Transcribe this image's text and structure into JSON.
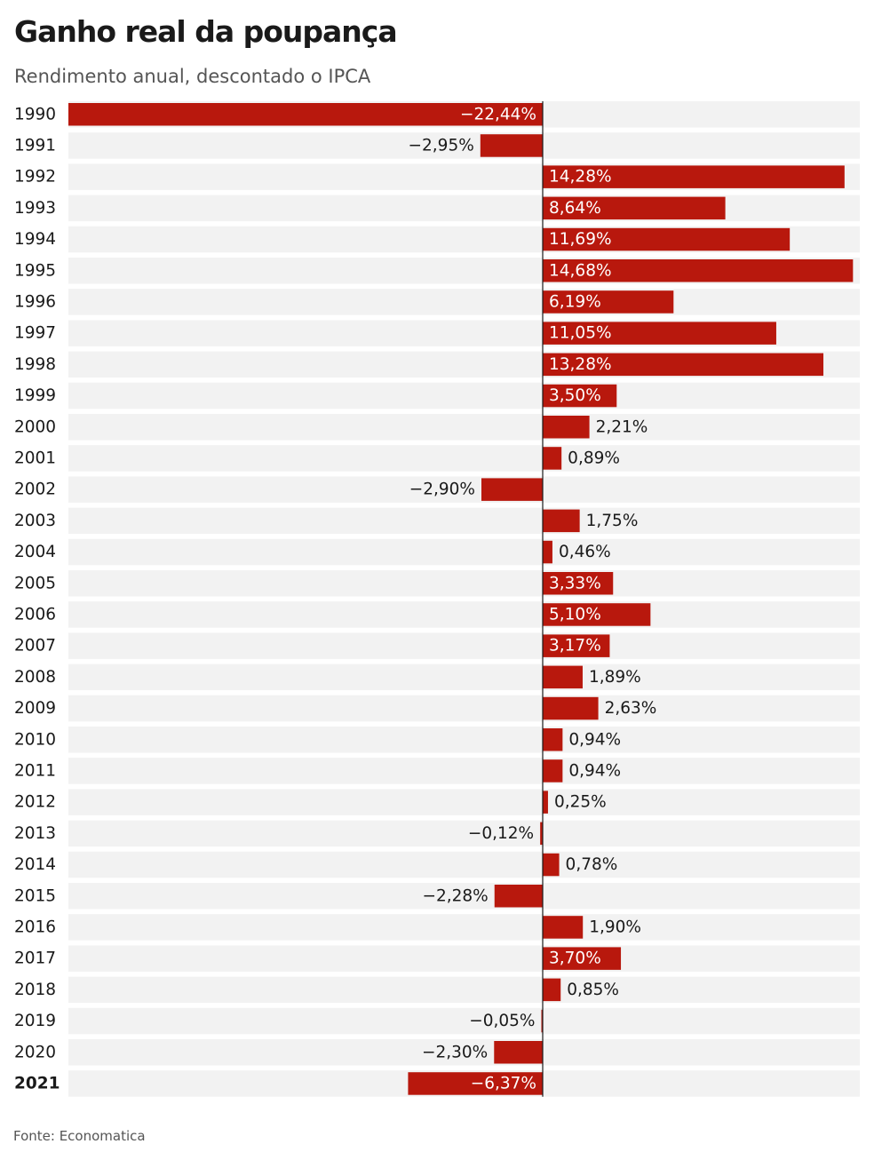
{
  "title": "Ganho real da poupança",
  "subtitle": "Rendimento anual, descontado o IPCA",
  "source": "Fonte: Economatica",
  "colors": {
    "bar": "#b8180d",
    "row_background": "#f2f2f2",
    "axis": "#1a1a1a",
    "label_inside": "#ffffff",
    "label_outside": "#1a1a1a"
  },
  "chart_data": {
    "type": "bar",
    "orientation": "horizontal",
    "title": "Ganho real da poupança",
    "subtitle": "Rendimento anual, descontado o IPCA",
    "xlabel": "",
    "ylabel": "",
    "unit": "%",
    "xlim": [
      -22.44,
      14.68
    ],
    "grid": false,
    "highlighted_category": "2021",
    "categories": [
      "1990",
      "1991",
      "1992",
      "1993",
      "1994",
      "1995",
      "1996",
      "1997",
      "1998",
      "1999",
      "2000",
      "2001",
      "2002",
      "2003",
      "2004",
      "2005",
      "2006",
      "2007",
      "2008",
      "2009",
      "2010",
      "2011",
      "2012",
      "2013",
      "2014",
      "2015",
      "2016",
      "2017",
      "2018",
      "2019",
      "2020",
      "2021"
    ],
    "values": [
      -22.44,
      -2.95,
      14.28,
      8.64,
      11.69,
      14.68,
      6.19,
      11.05,
      13.28,
      3.5,
      2.21,
      0.89,
      -2.9,
      1.75,
      0.46,
      3.33,
      5.1,
      3.17,
      1.89,
      2.63,
      0.94,
      0.94,
      0.25,
      -0.12,
      0.78,
      -2.28,
      1.9,
      3.7,
      0.85,
      -0.05,
      -2.3,
      -6.37
    ],
    "data_labels": [
      "−22,44%",
      "−2,95%",
      "14,28%",
      "8,64%",
      "11,69%",
      "14,68%",
      "6,19%",
      "11,05%",
      "13,28%",
      "3,50%",
      "2,21%",
      "0,89%",
      "−2,90%",
      "1,75%",
      "0,46%",
      "3,33%",
      "5,10%",
      "3,17%",
      "1,89%",
      "2,63%",
      "0,94%",
      "0,94%",
      "0,25%",
      "−0,12%",
      "0,78%",
      "−2,28%",
      "1,90%",
      "3,70%",
      "0,85%",
      "−0,05%",
      "−2,30%",
      "−6,37%"
    ]
  }
}
